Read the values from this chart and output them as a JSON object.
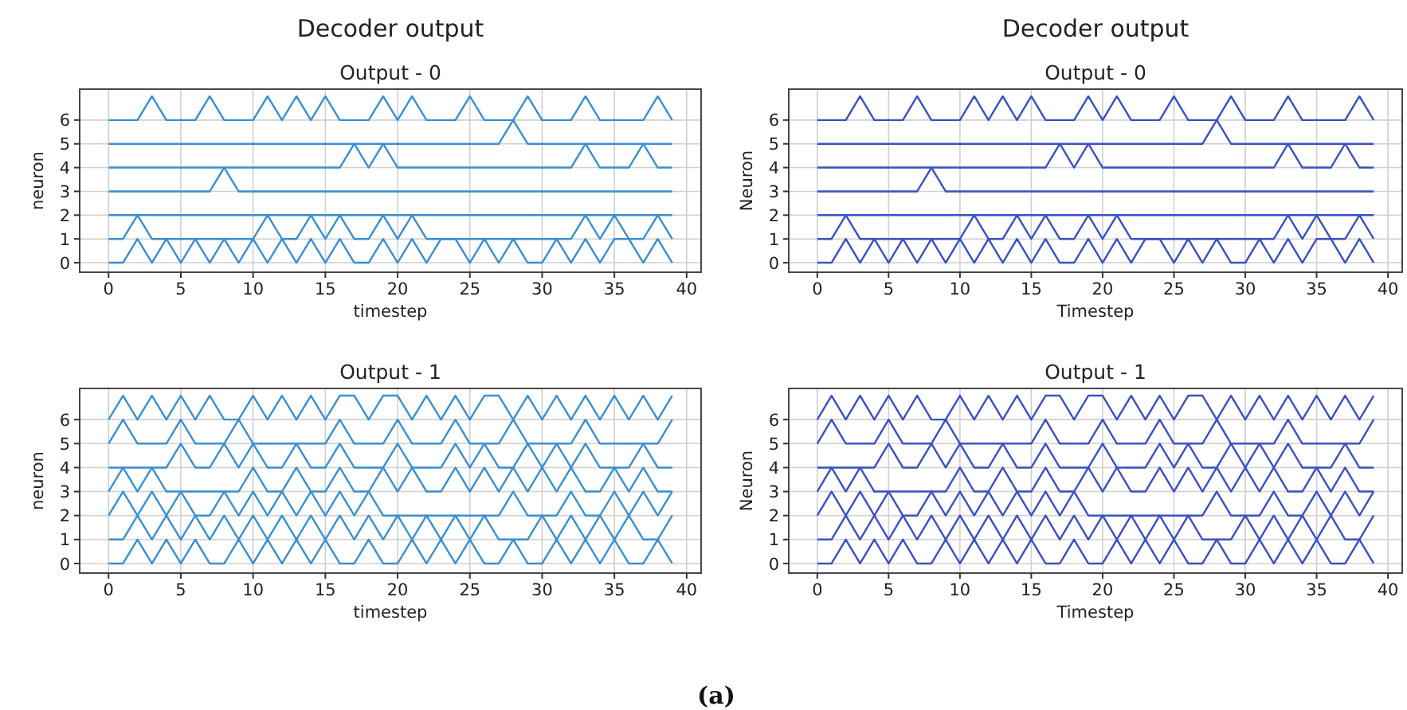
{
  "chart_data": [
    {
      "type": "line",
      "title": "Decoder output",
      "subtitle": "Output - 0",
      "xlabel": "timestep",
      "ylabel": "neuron",
      "grid": true,
      "xlim": [
        -2,
        41
      ],
      "ylim": [
        -0.4,
        7.3
      ],
      "xticks": [
        0,
        5,
        10,
        15,
        20,
        25,
        30,
        35,
        40
      ],
      "yticks": [
        0,
        1,
        2,
        3,
        4,
        5,
        6
      ],
      "x": [
        0,
        1,
        2,
        3,
        4,
        5,
        6,
        7,
        8,
        9,
        10,
        11,
        12,
        13,
        14,
        15,
        16,
        17,
        18,
        19,
        20,
        21,
        22,
        23,
        24,
        25,
        26,
        27,
        28,
        29,
        30,
        31,
        32,
        33,
        34,
        35,
        36,
        37,
        38,
        39
      ],
      "series": [
        {
          "color": "#3a8fd0",
          "values": [
            0,
            0,
            1,
            0,
            1,
            0,
            1,
            0,
            1,
            0,
            1,
            0,
            1,
            0,
            1,
            0,
            1,
            0,
            0,
            1,
            0,
            1,
            0,
            1,
            1,
            0,
            1,
            0,
            1,
            0,
            0,
            1,
            0,
            1,
            0,
            1,
            1,
            0,
            1,
            0
          ]
        },
        {
          "color": "#3a8fd0",
          "values": [
            1,
            1,
            2,
            1,
            1,
            1,
            1,
            1,
            1,
            1,
            1,
            2,
            1,
            1,
            2,
            1,
            2,
            1,
            1,
            2,
            1,
            2,
            1,
            1,
            1,
            1,
            1,
            1,
            1,
            1,
            1,
            1,
            1,
            2,
            1,
            2,
            1,
            1,
            2,
            1
          ]
        },
        {
          "color": "#3a8fd0",
          "values": [
            2,
            2,
            2,
            2,
            2,
            2,
            2,
            2,
            2,
            2,
            2,
            2,
            2,
            2,
            2,
            2,
            2,
            2,
            2,
            2,
            2,
            2,
            2,
            2,
            2,
            2,
            2,
            2,
            2,
            2,
            2,
            2,
            2,
            2,
            2,
            2,
            2,
            2,
            2,
            2
          ]
        },
        {
          "color": "#3a8fd0",
          "values": [
            3,
            3,
            3,
            3,
            3,
            3,
            3,
            3,
            4,
            3,
            3,
            3,
            3,
            3,
            3,
            3,
            3,
            3,
            3,
            3,
            3,
            3,
            3,
            3,
            3,
            3,
            3,
            3,
            3,
            3,
            3,
            3,
            3,
            3,
            3,
            3,
            3,
            3,
            3,
            3
          ]
        },
        {
          "color": "#3a8fd0",
          "values": [
            4,
            4,
            4,
            4,
            4,
            4,
            4,
            4,
            4,
            4,
            4,
            4,
            4,
            4,
            4,
            4,
            4,
            5,
            4,
            5,
            4,
            4,
            4,
            4,
            4,
            4,
            4,
            4,
            4,
            4,
            4,
            4,
            4,
            5,
            4,
            4,
            4,
            5,
            4,
            4
          ]
        },
        {
          "color": "#3a8fd0",
          "values": [
            5,
            5,
            5,
            5,
            5,
            5,
            5,
            5,
            5,
            5,
            5,
            5,
            5,
            5,
            5,
            5,
            5,
            5,
            5,
            5,
            5,
            5,
            5,
            5,
            5,
            5,
            5,
            5,
            6,
            5,
            5,
            5,
            5,
            5,
            5,
            5,
            5,
            5,
            5,
            5
          ]
        },
        {
          "color": "#3a8fd0",
          "values": [
            6,
            6,
            6,
            7,
            6,
            6,
            6,
            7,
            6,
            6,
            6,
            7,
            6,
            7,
            6,
            7,
            6,
            6,
            6,
            7,
            6,
            7,
            6,
            6,
            6,
            7,
            6,
            6,
            6,
            7,
            6,
            6,
            6,
            7,
            6,
            6,
            6,
            6,
            7,
            6
          ]
        }
      ]
    },
    {
      "type": "line",
      "title": "Decoder output",
      "subtitle": "Output - 0",
      "xlabel": "Timestep",
      "ylabel": "Neuron",
      "grid": true,
      "xlim": [
        -2,
        41
      ],
      "ylim": [
        -0.4,
        7.3
      ],
      "xticks": [
        0,
        5,
        10,
        15,
        20,
        25,
        30,
        35,
        40
      ],
      "yticks": [
        0,
        1,
        2,
        3,
        4,
        5,
        6
      ],
      "x": [
        0,
        1,
        2,
        3,
        4,
        5,
        6,
        7,
        8,
        9,
        10,
        11,
        12,
        13,
        14,
        15,
        16,
        17,
        18,
        19,
        20,
        21,
        22,
        23,
        24,
        25,
        26,
        27,
        28,
        29,
        30,
        31,
        32,
        33,
        34,
        35,
        36,
        37,
        38,
        39
      ],
      "series": [
        {
          "color": "#3a50c0",
          "values": [
            0,
            0,
            1,
            0,
            1,
            0,
            1,
            0,
            1,
            0,
            1,
            0,
            1,
            0,
            1,
            0,
            1,
            0,
            0,
            1,
            0,
            1,
            0,
            1,
            1,
            0,
            1,
            0,
            1,
            0,
            0,
            1,
            0,
            1,
            0,
            1,
            1,
            0,
            1,
            0
          ]
        },
        {
          "color": "#3a50c0",
          "values": [
            1,
            1,
            2,
            1,
            1,
            1,
            1,
            1,
            1,
            1,
            1,
            2,
            1,
            1,
            2,
            1,
            2,
            1,
            1,
            2,
            1,
            2,
            1,
            1,
            1,
            1,
            1,
            1,
            1,
            1,
            1,
            1,
            1,
            2,
            1,
            2,
            1,
            1,
            2,
            1
          ]
        },
        {
          "color": "#3a50c0",
          "values": [
            2,
            2,
            2,
            2,
            2,
            2,
            2,
            2,
            2,
            2,
            2,
            2,
            2,
            2,
            2,
            2,
            2,
            2,
            2,
            2,
            2,
            2,
            2,
            2,
            2,
            2,
            2,
            2,
            2,
            2,
            2,
            2,
            2,
            2,
            2,
            2,
            2,
            2,
            2,
            2
          ]
        },
        {
          "color": "#3a50c0",
          "values": [
            3,
            3,
            3,
            3,
            3,
            3,
            3,
            3,
            4,
            3,
            3,
            3,
            3,
            3,
            3,
            3,
            3,
            3,
            3,
            3,
            3,
            3,
            3,
            3,
            3,
            3,
            3,
            3,
            3,
            3,
            3,
            3,
            3,
            3,
            3,
            3,
            3,
            3,
            3,
            3
          ]
        },
        {
          "color": "#3a50c0",
          "values": [
            4,
            4,
            4,
            4,
            4,
            4,
            4,
            4,
            4,
            4,
            4,
            4,
            4,
            4,
            4,
            4,
            4,
            5,
            4,
            5,
            4,
            4,
            4,
            4,
            4,
            4,
            4,
            4,
            4,
            4,
            4,
            4,
            4,
            5,
            4,
            4,
            4,
            5,
            4,
            4
          ]
        },
        {
          "color": "#3a50c0",
          "values": [
            5,
            5,
            5,
            5,
            5,
            5,
            5,
            5,
            5,
            5,
            5,
            5,
            5,
            5,
            5,
            5,
            5,
            5,
            5,
            5,
            5,
            5,
            5,
            5,
            5,
            5,
            5,
            5,
            6,
            5,
            5,
            5,
            5,
            5,
            5,
            5,
            5,
            5,
            5,
            5
          ]
        },
        {
          "color": "#3a50c0",
          "values": [
            6,
            6,
            6,
            7,
            6,
            6,
            6,
            7,
            6,
            6,
            6,
            7,
            6,
            7,
            6,
            7,
            6,
            6,
            6,
            7,
            6,
            7,
            6,
            6,
            6,
            7,
            6,
            6,
            6,
            7,
            6,
            6,
            6,
            7,
            6,
            6,
            6,
            6,
            7,
            6
          ]
        }
      ]
    },
    {
      "type": "line",
      "title": "Output - 1",
      "xlabel": "timestep",
      "ylabel": "neuron",
      "grid": true,
      "xlim": [
        -2,
        41
      ],
      "ylim": [
        -0.4,
        7.3
      ],
      "xticks": [
        0,
        5,
        10,
        15,
        20,
        25,
        30,
        35,
        40
      ],
      "yticks": [
        0,
        1,
        2,
        3,
        4,
        5,
        6
      ],
      "annotations": [
        "(a)"
      ],
      "x": [
        0,
        1,
        2,
        3,
        4,
        5,
        6,
        7,
        8,
        9,
        10,
        11,
        12,
        13,
        14,
        15,
        16,
        17,
        18,
        19,
        20,
        21,
        22,
        23,
        24,
        25,
        26,
        27,
        28,
        29,
        30,
        31,
        32,
        33,
        34,
        35,
        36,
        37,
        38,
        39
      ],
      "series": [
        {
          "color": "#3a8fd0",
          "values": [
            0,
            0,
            1,
            0,
            1,
            0,
            1,
            0,
            0,
            1,
            0,
            1,
            0,
            1,
            0,
            1,
            0,
            0,
            1,
            0,
            0,
            1,
            0,
            1,
            0,
            1,
            0,
            0,
            1,
            0,
            0,
            1,
            0,
            1,
            0,
            1,
            0,
            0,
            1,
            0
          ]
        },
        {
          "color": "#3a8fd0",
          "values": [
            1,
            1,
            2,
            1,
            2,
            1,
            2,
            1,
            2,
            1,
            2,
            1,
            2,
            1,
            2,
            1,
            2,
            1,
            2,
            1,
            2,
            1,
            2,
            1,
            2,
            1,
            2,
            1,
            1,
            1,
            2,
            1,
            2,
            1,
            2,
            1,
            2,
            1,
            1,
            2
          ]
        },
        {
          "color": "#3a8fd0",
          "values": [
            2,
            3,
            2,
            3,
            2,
            3,
            2,
            2,
            3,
            2,
            3,
            2,
            3,
            2,
            3,
            2,
            3,
            2,
            3,
            2,
            2,
            2,
            2,
            2,
            2,
            2,
            2,
            2,
            3,
            2,
            2,
            2,
            3,
            2,
            2,
            3,
            2,
            3,
            2,
            3
          ]
        },
        {
          "color": "#3a8fd0",
          "values": [
            3,
            4,
            3,
            4,
            3,
            3,
            3,
            3,
            3,
            3,
            4,
            3,
            3,
            4,
            3,
            3,
            4,
            3,
            3,
            4,
            3,
            4,
            3,
            3,
            4,
            3,
            4,
            3,
            4,
            3,
            4,
            3,
            4,
            3,
            3,
            4,
            3,
            4,
            3,
            3
          ]
        },
        {
          "color": "#3a8fd0",
          "values": [
            4,
            4,
            4,
            4,
            4,
            5,
            4,
            4,
            5,
            4,
            5,
            4,
            4,
            5,
            4,
            4,
            5,
            4,
            4,
            4,
            5,
            4,
            4,
            4,
            5,
            4,
            5,
            4,
            4,
            5,
            4,
            5,
            4,
            5,
            4,
            4,
            4,
            5,
            4,
            4
          ]
        },
        {
          "color": "#3a8fd0",
          "values": [
            5,
            6,
            5,
            5,
            5,
            6,
            5,
            5,
            5,
            6,
            5,
            5,
            5,
            5,
            5,
            5,
            6,
            5,
            5,
            5,
            6,
            5,
            5,
            5,
            6,
            5,
            5,
            5,
            6,
            5,
            5,
            5,
            5,
            6,
            5,
            5,
            5,
            5,
            5,
            6
          ]
        },
        {
          "color": "#3a8fd0",
          "values": [
            6,
            7,
            6,
            7,
            6,
            7,
            6,
            7,
            6,
            6,
            7,
            6,
            7,
            6,
            7,
            6,
            7,
            7,
            6,
            7,
            7,
            6,
            7,
            6,
            7,
            6,
            7,
            7,
            6,
            7,
            6,
            7,
            6,
            7,
            6,
            7,
            6,
            7,
            6,
            7
          ]
        }
      ]
    },
    {
      "type": "line",
      "title": "Output - 1",
      "xlabel": "Timestep",
      "ylabel": "Neuron",
      "grid": true,
      "xlim": [
        -2,
        41
      ],
      "ylim": [
        -0.4,
        7.3
      ],
      "xticks": [
        0,
        5,
        10,
        15,
        20,
        25,
        30,
        35,
        40
      ],
      "yticks": [
        0,
        1,
        2,
        3,
        4,
        5,
        6
      ],
      "x": [
        0,
        1,
        2,
        3,
        4,
        5,
        6,
        7,
        8,
        9,
        10,
        11,
        12,
        13,
        14,
        15,
        16,
        17,
        18,
        19,
        20,
        21,
        22,
        23,
        24,
        25,
        26,
        27,
        28,
        29,
        30,
        31,
        32,
        33,
        34,
        35,
        36,
        37,
        38,
        39
      ],
      "series": [
        {
          "color": "#3a50c0",
          "values": [
            0,
            0,
            1,
            0,
            1,
            0,
            1,
            0,
            0,
            1,
            0,
            1,
            0,
            1,
            0,
            1,
            0,
            0,
            1,
            0,
            0,
            1,
            0,
            1,
            0,
            1,
            0,
            0,
            1,
            0,
            0,
            1,
            0,
            1,
            0,
            1,
            0,
            0,
            1,
            0
          ]
        },
        {
          "color": "#3a50c0",
          "values": [
            1,
            1,
            2,
            1,
            2,
            1,
            2,
            1,
            2,
            1,
            2,
            1,
            2,
            1,
            2,
            1,
            2,
            1,
            2,
            1,
            2,
            1,
            2,
            1,
            2,
            1,
            2,
            1,
            1,
            1,
            2,
            1,
            2,
            1,
            2,
            1,
            2,
            1,
            1,
            2
          ]
        },
        {
          "color": "#3a50c0",
          "values": [
            2,
            3,
            2,
            3,
            2,
            3,
            2,
            2,
            3,
            2,
            3,
            2,
            3,
            2,
            3,
            2,
            3,
            2,
            3,
            2,
            2,
            2,
            2,
            2,
            2,
            2,
            2,
            2,
            3,
            2,
            2,
            2,
            3,
            2,
            2,
            3,
            2,
            3,
            2,
            3
          ]
        },
        {
          "color": "#3a50c0",
          "values": [
            3,
            4,
            3,
            4,
            3,
            3,
            3,
            3,
            3,
            3,
            4,
            3,
            3,
            4,
            3,
            3,
            4,
            3,
            3,
            4,
            3,
            4,
            3,
            3,
            4,
            3,
            4,
            3,
            4,
            3,
            4,
            3,
            4,
            3,
            3,
            4,
            3,
            4,
            3,
            3
          ]
        },
        {
          "color": "#3a50c0",
          "values": [
            4,
            4,
            4,
            4,
            4,
            5,
            4,
            4,
            5,
            4,
            5,
            4,
            4,
            5,
            4,
            4,
            5,
            4,
            4,
            4,
            5,
            4,
            4,
            4,
            5,
            4,
            5,
            4,
            4,
            5,
            4,
            5,
            4,
            5,
            4,
            4,
            4,
            5,
            4,
            4
          ]
        },
        {
          "color": "#3a50c0",
          "values": [
            5,
            6,
            5,
            5,
            5,
            6,
            5,
            5,
            5,
            6,
            5,
            5,
            5,
            5,
            5,
            5,
            6,
            5,
            5,
            5,
            6,
            5,
            5,
            5,
            6,
            5,
            5,
            5,
            6,
            5,
            5,
            5,
            5,
            6,
            5,
            5,
            5,
            5,
            5,
            6
          ]
        },
        {
          "color": "#3a50c0",
          "values": [
            6,
            7,
            6,
            7,
            6,
            7,
            6,
            7,
            6,
            6,
            7,
            6,
            7,
            6,
            7,
            6,
            7,
            7,
            6,
            7,
            7,
            6,
            7,
            6,
            7,
            6,
            7,
            7,
            6,
            7,
            6,
            7,
            6,
            7,
            6,
            7,
            6,
            7,
            6,
            7
          ]
        }
      ]
    }
  ]
}
